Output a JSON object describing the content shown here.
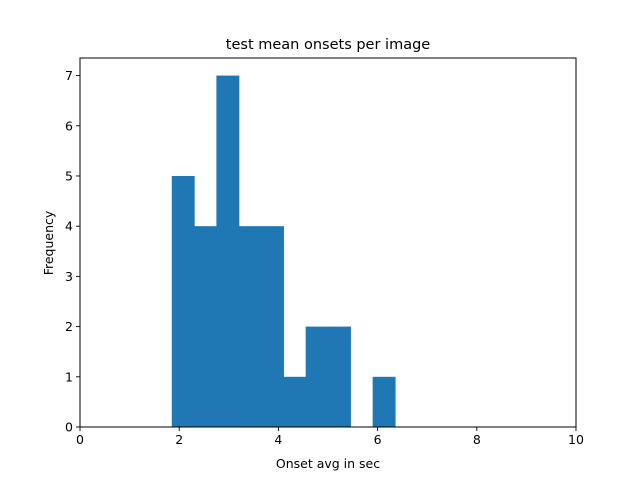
{
  "chart_data": {
    "type": "bar",
    "title": "test mean onsets per image",
    "xlabel": "Onset avg in sec",
    "ylabel": "Frequency",
    "xlim": [
      0,
      10
    ],
    "ylim": [
      0,
      7.35
    ],
    "x_ticks": [
      0,
      2,
      4,
      6,
      8,
      10
    ],
    "y_ticks": [
      0,
      1,
      2,
      3,
      4,
      5,
      6,
      7
    ],
    "grid": false,
    "colors": {
      "bar": "#1f77b4",
      "axes": "#000000"
    },
    "bins": [
      {
        "x0": 1.85,
        "x1": 2.3,
        "count": 5
      },
      {
        "x0": 2.3,
        "x1": 2.75,
        "count": 4
      },
      {
        "x0": 2.75,
        "x1": 3.2,
        "count": 7
      },
      {
        "x0": 3.2,
        "x1": 3.65,
        "count": 4
      },
      {
        "x0": 3.65,
        "x1": 4.1,
        "count": 4
      },
      {
        "x0": 4.1,
        "x1": 4.55,
        "count": 1
      },
      {
        "x0": 4.55,
        "x1": 5.0,
        "count": 2
      },
      {
        "x0": 5.0,
        "x1": 5.45,
        "count": 2
      },
      {
        "x0": 5.45,
        "x1": 5.9,
        "count": 0
      },
      {
        "x0": 5.9,
        "x1": 6.35,
        "count": 1
      }
    ]
  }
}
